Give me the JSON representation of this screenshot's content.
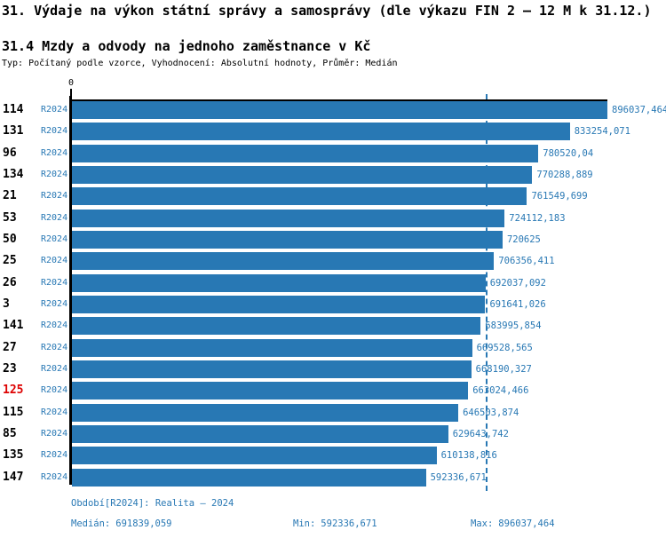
{
  "header": {
    "title": "31. Výdaje na výkon státní správy a samosprávy (dle výkazu FIN 2 – 12 M k 31.12.)",
    "subtitle": "31.4 Mzdy a odvody na jednoho zaměstnance v Kč",
    "meta": "Typ: Počítaný podle vzorce, Vyhodnocení: Absolutní hodnoty, Průměr: Medián"
  },
  "chart_data": {
    "type": "bar",
    "orientation": "horizontal",
    "title": "31.4 Mzdy a odvody na jednoho zaměstnance v Kč",
    "xlabel": "",
    "ylabel": "",
    "grid": false,
    "axis": {
      "min": 0,
      "max": 896037.464,
      "zero_label": "0"
    },
    "median": 691839.059,
    "period_label": "R2024",
    "rows": [
      {
        "id": "114",
        "value": 896037.464,
        "label": "896037,464"
      },
      {
        "id": "131",
        "value": 833254.071,
        "label": "833254,071"
      },
      {
        "id": "96",
        "value": 780520.04,
        "label": "780520,04"
      },
      {
        "id": "134",
        "value": 770288.889,
        "label": "770288,889"
      },
      {
        "id": "21",
        "value": 761549.699,
        "label": "761549,699"
      },
      {
        "id": "53",
        "value": 724112.183,
        "label": "724112,183"
      },
      {
        "id": "50",
        "value": 720625,
        "label": "720625"
      },
      {
        "id": "25",
        "value": 706356.411,
        "label": "706356,411"
      },
      {
        "id": "26",
        "value": 692037.092,
        "label": "692037,092"
      },
      {
        "id": "3",
        "value": 691641.026,
        "label": "691641,026"
      },
      {
        "id": "141",
        "value": 683995.854,
        "label": "683995,854"
      },
      {
        "id": "27",
        "value": 669528.565,
        "label": "669528,565"
      },
      {
        "id": "23",
        "value": 668190.327,
        "label": "668190,327"
      },
      {
        "id": "125",
        "value": 663024.466,
        "label": "663024,466",
        "highlight": true
      },
      {
        "id": "115",
        "value": 646503.874,
        "label": "646503,874"
      },
      {
        "id": "85",
        "value": 629643.742,
        "label": "629643,742"
      },
      {
        "id": "135",
        "value": 610138.816,
        "label": "610138,816"
      },
      {
        "id": "147",
        "value": 592336.671,
        "label": "592336,671"
      }
    ],
    "colors": {
      "bar": "#2878b4",
      "value_text": "#2878b4",
      "highlight_row_number": "#dd0000",
      "axis": "#000000",
      "median_line": "#2878b4"
    },
    "median_line_style": "dashed"
  },
  "footer": {
    "period": "Období[R2024]: Realita – 2024",
    "stats": [
      {
        "label": "Medián:",
        "value": "691839,059"
      },
      {
        "label": "Min:",
        "value": "592336,671"
      },
      {
        "label": "Max:",
        "value": "896037,464"
      }
    ]
  }
}
